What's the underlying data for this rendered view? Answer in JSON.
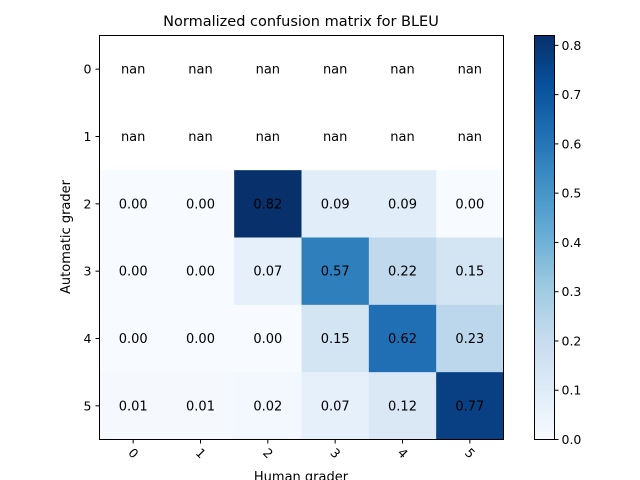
{
  "chart_data": {
    "type": "heatmap",
    "title": "Normalized confusion matrix for BLEU",
    "xlabel": "Human grader",
    "ylabel": "Automatic grader",
    "x_categories": [
      "0",
      "1",
      "2",
      "3",
      "4",
      "5"
    ],
    "y_categories": [
      "0",
      "1",
      "2",
      "3",
      "4",
      "5"
    ],
    "values": [
      [
        null,
        null,
        null,
        null,
        null,
        null
      ],
      [
        null,
        null,
        null,
        null,
        null,
        null
      ],
      [
        0.0,
        0.0,
        0.82,
        0.09,
        0.09,
        0.0
      ],
      [
        0.0,
        0.0,
        0.07,
        0.57,
        0.22,
        0.15
      ],
      [
        0.0,
        0.0,
        0.0,
        0.15,
        0.62,
        0.23
      ],
      [
        0.01,
        0.01,
        0.02,
        0.07,
        0.12,
        0.77
      ]
    ],
    "labels": [
      [
        "nan",
        "nan",
        "nan",
        "nan",
        "nan",
        "nan"
      ],
      [
        "nan",
        "nan",
        "nan",
        "nan",
        "nan",
        "nan"
      ],
      [
        "0.00",
        "0.00",
        "0.82",
        "0.09",
        "0.09",
        "0.00"
      ],
      [
        "0.00",
        "0.00",
        "0.07",
        "0.57",
        "0.22",
        "0.15"
      ],
      [
        "0.00",
        "0.00",
        "0.00",
        "0.15",
        "0.62",
        "0.23"
      ],
      [
        "0.01",
        "0.01",
        "0.02",
        "0.07",
        "0.12",
        "0.77"
      ]
    ],
    "colorbar": {
      "min": 0.0,
      "max": 0.82,
      "ticks": [
        "0.0",
        "0.1",
        "0.2",
        "0.3",
        "0.4",
        "0.5",
        "0.6",
        "0.7",
        "0.8"
      ],
      "colormap": "Blues"
    },
    "grid": false
  }
}
